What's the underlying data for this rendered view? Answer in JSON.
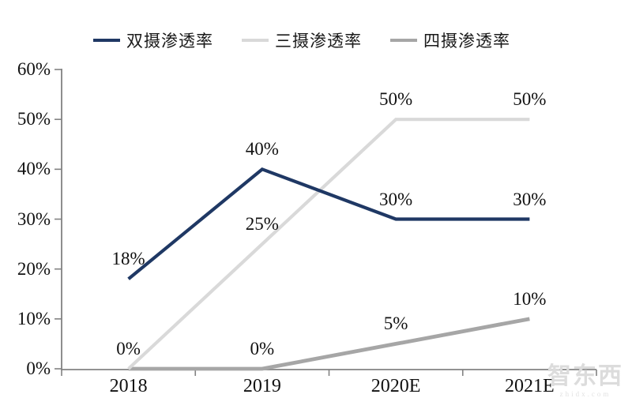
{
  "chart_data": {
    "type": "line",
    "categories": [
      "2018",
      "2019",
      "2020E",
      "2021E"
    ],
    "series": [
      {
        "name": "双摄渗透率",
        "color": "#1F3864",
        "values": [
          18,
          40,
          30,
          30
        ],
        "labels": [
          "18%",
          "40%",
          "30%",
          "30%"
        ]
      },
      {
        "name": "三摄渗透率",
        "color": "#D9D9D9",
        "values": [
          0,
          25,
          50,
          50
        ],
        "labels": [
          "0%",
          "25%",
          "50%",
          "50%"
        ]
      },
      {
        "name": "四摄渗透率",
        "color": "#A6A6A6",
        "values": [
          0,
          0,
          5,
          10
        ],
        "labels": [
          null,
          "0%",
          "5%",
          "10%"
        ]
      }
    ],
    "title": "",
    "xlabel": "",
    "ylabel": "",
    "ylim": [
      0,
      60
    ],
    "ytick_step": 10,
    "ytick_labels": [
      "0%",
      "10%",
      "20%",
      "30%",
      "40%",
      "50%",
      "60%"
    ],
    "grid": false,
    "legend_position": "top",
    "axis_color": "#828282",
    "text_color": "#111111"
  },
  "watermark": {
    "title": "智东西",
    "subtitle": "zhidx.com"
  }
}
